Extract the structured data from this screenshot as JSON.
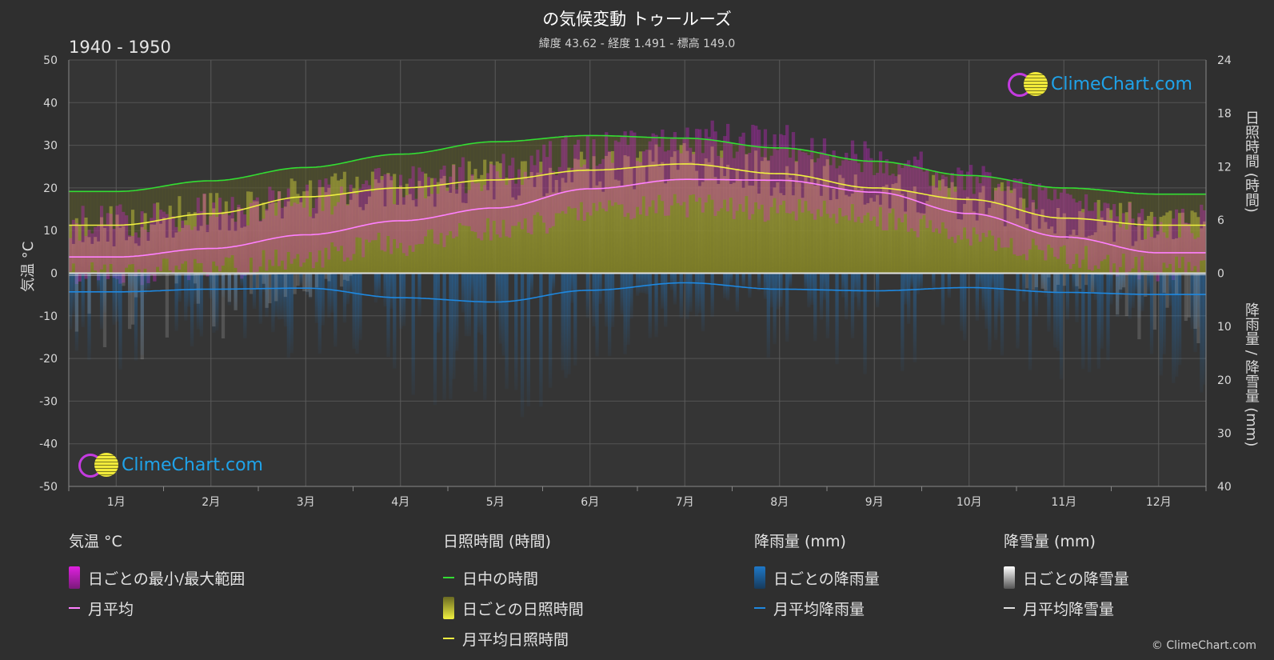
{
  "title": "の気候変動 トゥールーズ",
  "subtitle": "緯度 43.62 - 経度 1.491 - 標高 149.0",
  "period": "1940 - 1950",
  "watermark": "ClimeChart.com",
  "copyright": "© ClimeChart.com",
  "colors": {
    "background": "#2f2f2f",
    "temp_range": "#e020e0",
    "temp_mean": "#ff80ff",
    "daylight": "#33dd33",
    "sunshine_bar": "#c8c83a",
    "sunshine_mean": "#f0f040",
    "rain": "#1e78c8",
    "snow": "#bdbdbd",
    "logo_text": "#1fa3ea"
  },
  "legend": {
    "temp": {
      "head": "気温 °C",
      "range": "日ごとの最小/最大範囲",
      "mean": "月平均"
    },
    "sun": {
      "head": "日照時間 (時間)",
      "daylight": "日中の時間",
      "daily": "日ごとの日照時間",
      "mean": "月平均日照時間"
    },
    "rain": {
      "head": "降雨量 (mm)",
      "daily": "日ごとの降雨量",
      "mean": "月平均降雨量"
    },
    "snow": {
      "head": "降雪量 (mm)",
      "daily": "日ごとの降雪量",
      "mean": "月平均降雪量"
    }
  },
  "chart_data": {
    "type": "area",
    "categories": [
      "1月",
      "2月",
      "3月",
      "4月",
      "5月",
      "6月",
      "7月",
      "8月",
      "9月",
      "10月",
      "11月",
      "12月"
    ],
    "axes": {
      "left": {
        "label": "気温 °C",
        "min": -50,
        "max": 50,
        "ticks": [
          50,
          40,
          30,
          20,
          10,
          0,
          -10,
          -20,
          -30,
          -40,
          -50
        ]
      },
      "right_top": {
        "label": "日照時間 (時間)",
        "min": 0,
        "max": 24,
        "ticks": [
          24,
          18,
          12,
          6,
          0
        ]
      },
      "right_bottom": {
        "label": "降雨量 / 降雪量 (mm)",
        "min": 0,
        "max": 40,
        "ticks": [
          0,
          10,
          20,
          30,
          40
        ]
      }
    },
    "grid": true,
    "series": [
      {
        "name": "日中の時間",
        "axis": "right_top",
        "values": [
          9.2,
          10.4,
          11.9,
          13.4,
          14.8,
          15.5,
          15.2,
          14.1,
          12.6,
          11.0,
          9.6,
          8.9
        ]
      },
      {
        "name": "月平均日照時間",
        "axis": "right_top",
        "values": [
          5.4,
          6.7,
          8.6,
          9.6,
          10.5,
          11.6,
          12.3,
          11.2,
          9.6,
          8.3,
          6.2,
          5.4
        ]
      },
      {
        "name": "月平均",
        "axis": "left",
        "values": [
          3.8,
          5.8,
          9.0,
          12.3,
          15.3,
          19.8,
          22.0,
          21.8,
          19.0,
          14.0,
          8.5,
          4.8
        ]
      },
      {
        "name": "日ごとの最小/最大範囲 (最小)",
        "axis": "left",
        "values": [
          0,
          1,
          4,
          7,
          10,
          14,
          16,
          15,
          13,
          9,
          4,
          1
        ]
      },
      {
        "name": "日ごとの最小/最大範囲 (最大)",
        "axis": "left",
        "values": [
          9,
          12,
          15,
          18,
          21,
          26,
          29,
          28,
          24,
          19,
          13,
          9
        ]
      },
      {
        "name": "月平均降雨量",
        "axis": "right_bottom",
        "values": [
          3.5,
          3.0,
          2.8,
          4.6,
          5.4,
          3.2,
          1.8,
          3.0,
          3.3,
          2.7,
          3.6,
          4.0
        ]
      },
      {
        "name": "月平均降雪量",
        "axis": "right_bottom",
        "values": [
          0.4,
          0.3,
          0.1,
          0,
          0,
          0,
          0,
          0,
          0,
          0,
          0.1,
          0.3
        ]
      }
    ]
  }
}
